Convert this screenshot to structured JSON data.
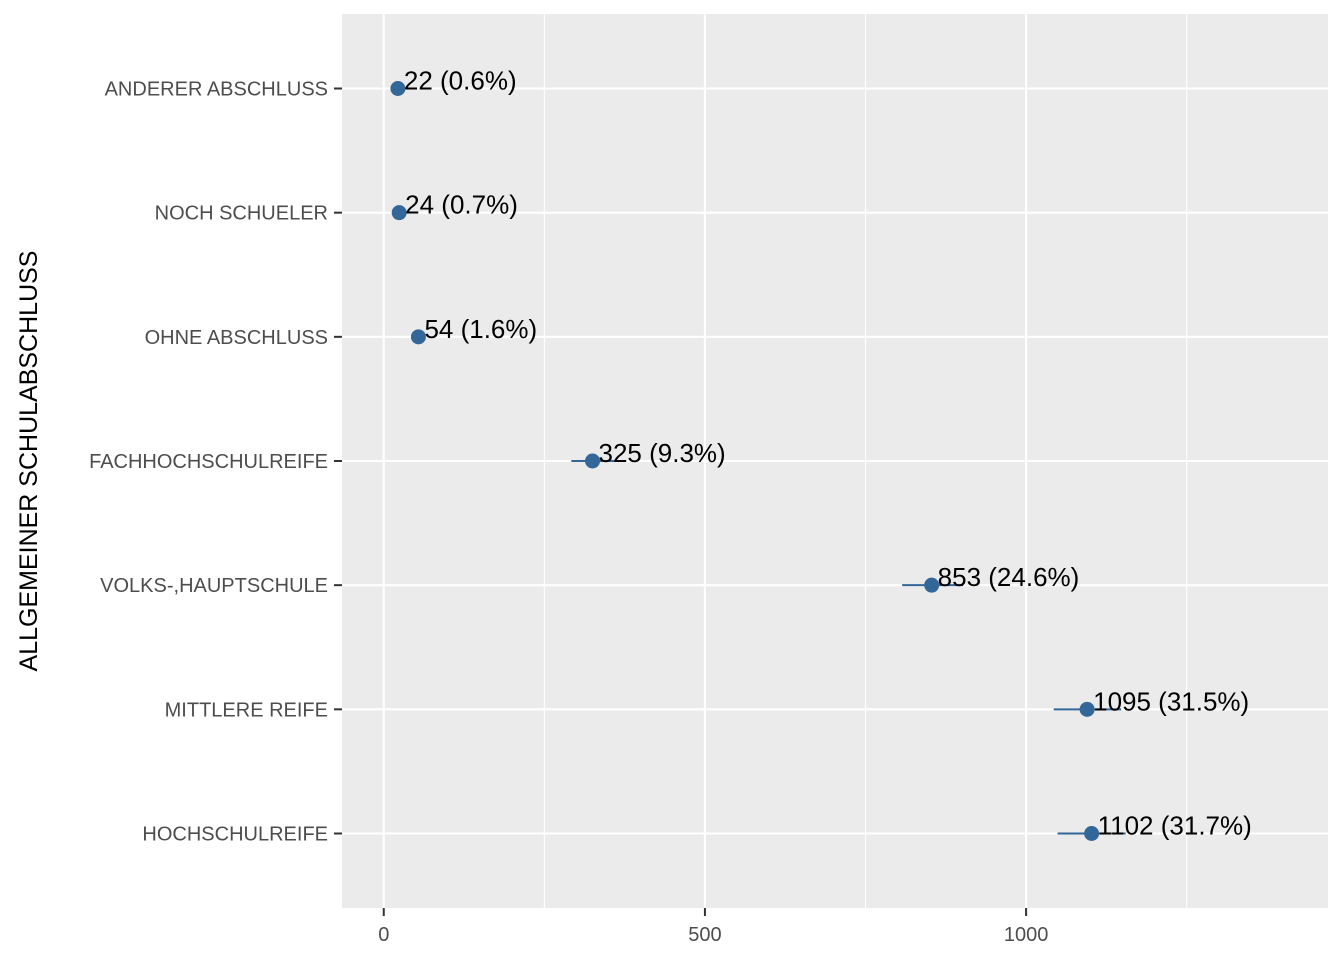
{
  "chart_data": {
    "type": "scatter",
    "title": "",
    "xlabel": "",
    "ylabel": "ALLGEMEINER SCHULABSCHLUSS",
    "xlim": [
      -65,
      1470
    ],
    "xticks": [
      0,
      500,
      1000
    ],
    "grid": true,
    "categories": [
      "ANDERER ABSCHLUSS",
      "NOCH SCHUELER",
      "OHNE ABSCHLUSS",
      "FACHHOCHSCHULREIFE",
      "VOLKS-,HAUPTSCHULE",
      "MITTLERE REIFE",
      "HOCHSCHULREIFE"
    ],
    "values": [
      22,
      24,
      54,
      325,
      853,
      1095,
      1102
    ],
    "lower": [
      22,
      24,
      54,
      292,
      807,
      1043,
      1049
    ],
    "upper": [
      22,
      24,
      54,
      361,
      902,
      1148,
      1155
    ],
    "labels": [
      "22 (0.6%)",
      "24 (0.7%)",
      "54 (1.6%)",
      "325 (9.3%)",
      "853 (24.6%)",
      "1095 (31.5%)",
      "1102 (31.7%)"
    ],
    "colors": {
      "point": "#336699",
      "panel": "#ebebeb",
      "grid": "#ffffff"
    }
  }
}
